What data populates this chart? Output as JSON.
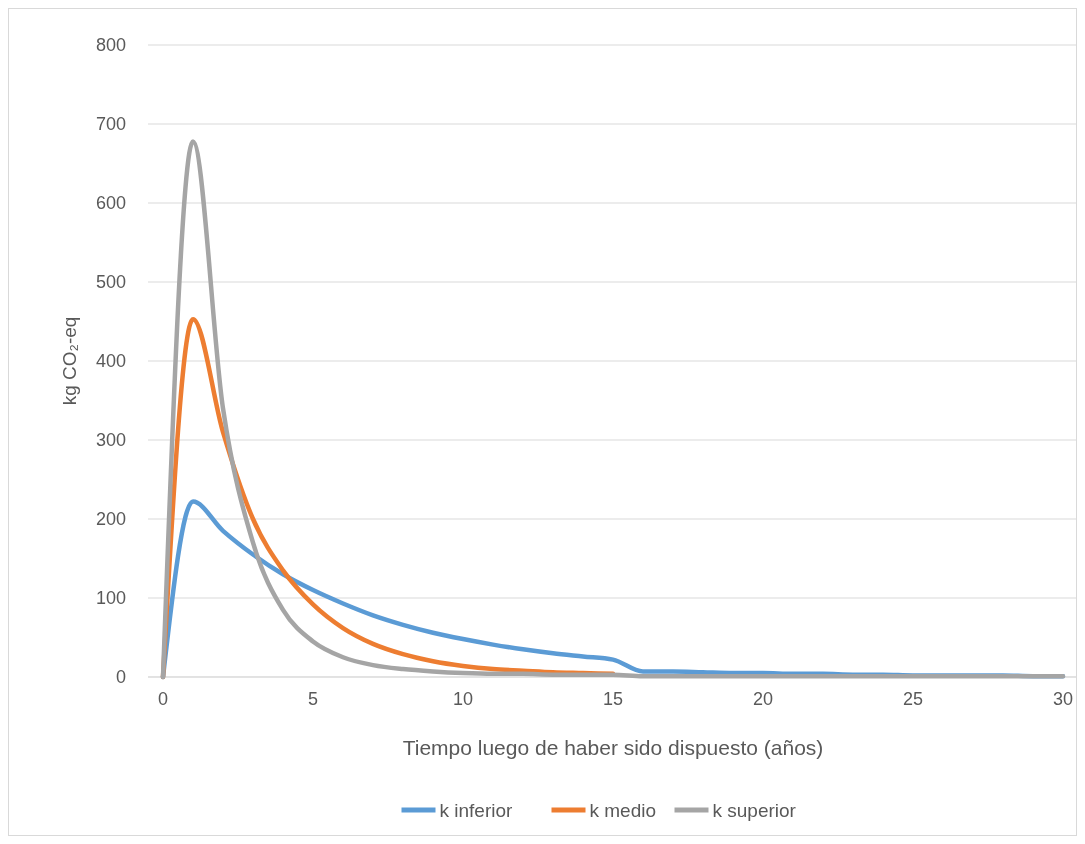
{
  "chart_data": {
    "type": "line",
    "xlabel": "Tiempo luego de haber sido dispuesto (años)",
    "ylabel": "kg CO₂-eq",
    "x": [
      0,
      1,
      2,
      3,
      4,
      5,
      6,
      7,
      8,
      9,
      10,
      11,
      12,
      13,
      14,
      15,
      16,
      17,
      18,
      19,
      20,
      21,
      22,
      23,
      24,
      25,
      26,
      27,
      28,
      29,
      30
    ],
    "xlim": [
      -0.5,
      30.5
    ],
    "xticks": [
      0,
      5,
      10,
      15,
      20,
      25,
      30
    ],
    "ylim": [
      0,
      800
    ],
    "yticks": [
      0,
      100,
      200,
      300,
      400,
      500,
      600,
      700,
      800
    ],
    "grid": "y",
    "legend": "bottom",
    "marker": "none",
    "line_style": "solid",
    "series": [
      {
        "name": "k inferior",
        "color": "#5b9bd5",
        "values": [
          0,
          222,
          185,
          155,
          130,
          110,
          93,
          78,
          66,
          56,
          48,
          41,
          35,
          30,
          26,
          22,
          7,
          7,
          6,
          5,
          5,
          4,
          4,
          3,
          3,
          2,
          2,
          2,
          2,
          1,
          1
        ]
      },
      {
        "name": "k medio",
        "color": "#ed7d31",
        "values": [
          0,
          453,
          310,
          200,
          135,
          92,
          62,
          42,
          29,
          20,
          14,
          10,
          8,
          6,
          5,
          4,
          null,
          null,
          null,
          null,
          null,
          null,
          null,
          null,
          null,
          null,
          null,
          null,
          null,
          null,
          null
        ]
      },
      {
        "name": "k superior",
        "color": "#a5a5a5",
        "values": [
          0,
          678,
          340,
          170,
          85,
          45,
          25,
          15,
          10,
          7,
          5,
          4,
          4,
          3,
          3,
          3,
          1,
          1,
          1,
          1,
          1,
          1,
          1,
          1,
          1,
          1,
          1,
          1,
          1,
          1,
          1
        ]
      }
    ]
  }
}
